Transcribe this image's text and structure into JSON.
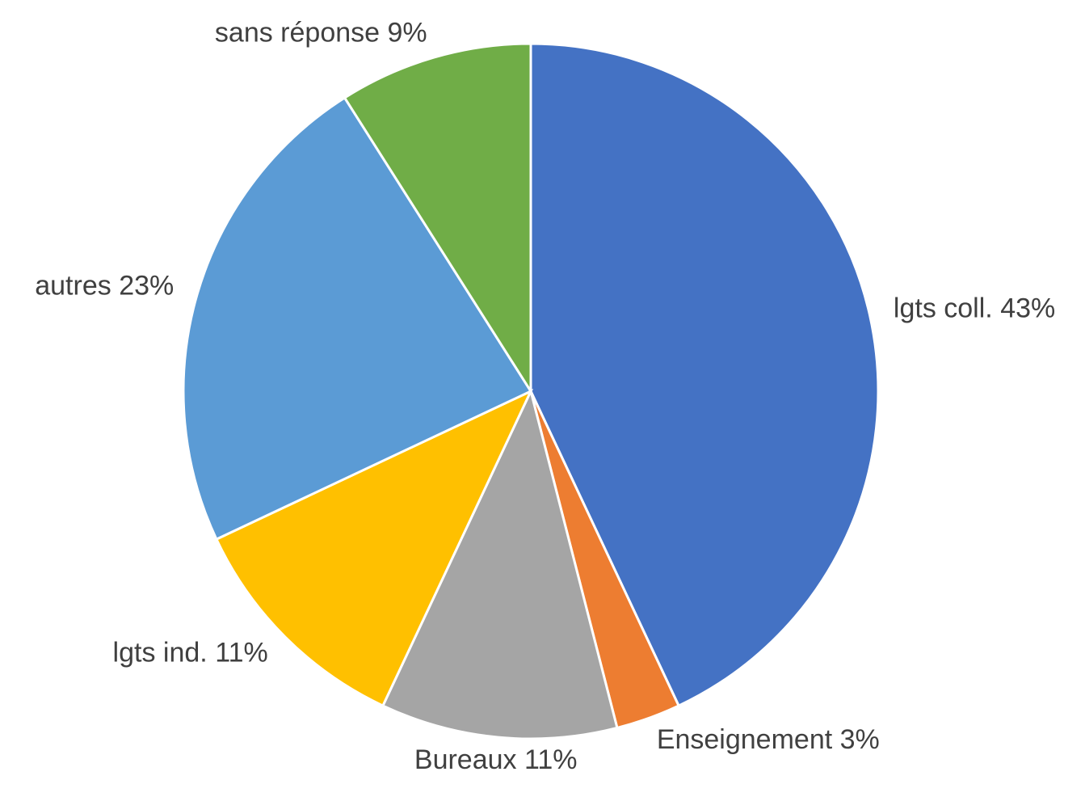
{
  "chart_data": {
    "type": "pie",
    "categories": [
      "lgts coll.",
      "Enseignement",
      "Bureaux",
      "lgts ind.",
      "autres",
      "sans réponse"
    ],
    "values": [
      43,
      3,
      11,
      11,
      23,
      9
    ],
    "value_labels": [
      "43%",
      "3%",
      "11%",
      "11%",
      "23%",
      "9%"
    ],
    "colors": [
      "#4472c4",
      "#ed7d31",
      "#a5a5a5",
      "#ffc000",
      "#5b9bd5",
      "#70ad47"
    ]
  }
}
